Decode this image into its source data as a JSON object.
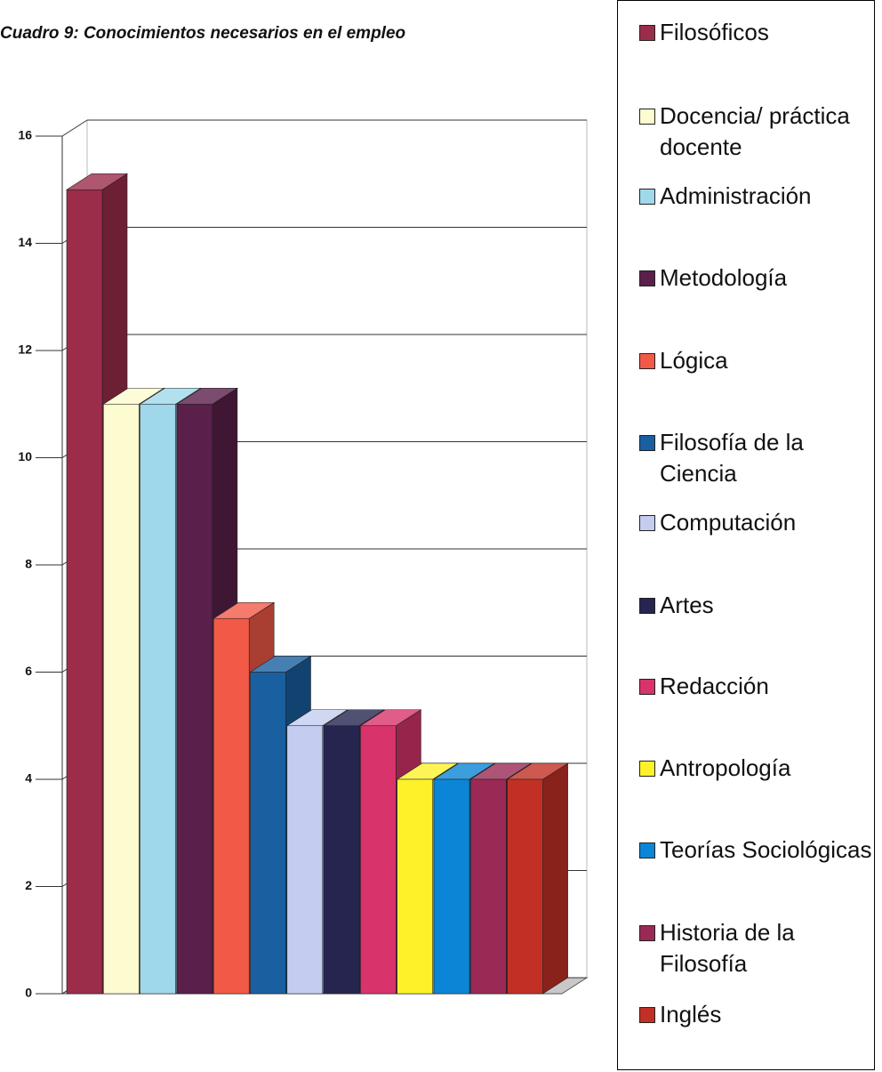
{
  "chart_data": {
    "type": "bar3d",
    "title": "Cuadro 9: Conocimientos necesarios en el empleo",
    "categories": [
      "Filosóficos",
      "Docencia/ práctica docente",
      "Administración",
      "Metodología",
      "Lógica",
      "Filosofía de la Ciencia",
      "Computación",
      "Artes",
      "Redacción",
      "Antropología",
      "Teorías Sociológicas",
      "Historia de la Filosofía",
      "Inglés"
    ],
    "values": [
      15,
      11,
      11,
      11,
      7,
      6,
      5,
      5,
      5,
      4,
      4,
      4,
      4
    ],
    "colors": [
      "#9b2d4a",
      "#fdfbd0",
      "#9fd8ea",
      "#5a1f4a",
      "#f25a47",
      "#1a5fa0",
      "#c4cdf0",
      "#262550",
      "#d8336b",
      "#fdf22a",
      "#0b86d6",
      "#9a2a55",
      "#c23025"
    ],
    "ylim": [
      0,
      16
    ],
    "yticks": [
      0,
      2,
      4,
      6,
      8,
      10,
      12,
      14,
      16
    ],
    "grid": true
  }
}
